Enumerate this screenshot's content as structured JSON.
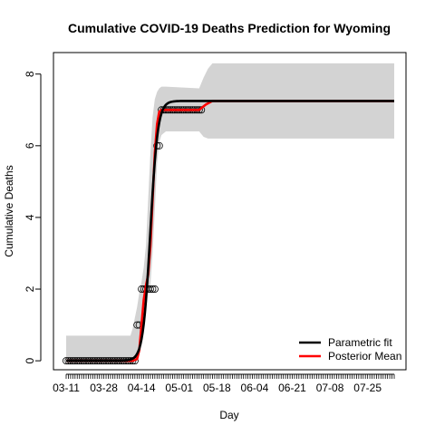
{
  "chart_data": {
    "type": "line",
    "title": "Cumulative COVID-19 Deaths Prediction for Wyoming",
    "xlabel": "Day",
    "ylabel": "Cumulative Deaths",
    "x_start_date": "2020-03-11",
    "x_end_date": "2020-08-06",
    "ylim": [
      0,
      8.6
    ],
    "y_ticks": [
      0,
      2,
      4,
      6,
      8
    ],
    "x_tick_labels": [
      "03-11",
      "03-28",
      "04-14",
      "05-01",
      "05-18",
      "06-04",
      "06-21",
      "07-08",
      "07-25"
    ],
    "x_tick_dates": [
      "2020-03-11",
      "2020-03-28",
      "2020-04-14",
      "2020-05-01",
      "2020-05-18",
      "2020-06-04",
      "2020-06-21",
      "2020-07-08",
      "2020-07-25"
    ],
    "observed": {
      "dates": [
        "2020-03-11",
        "2020-03-12",
        "2020-03-13",
        "2020-03-14",
        "2020-03-15",
        "2020-03-16",
        "2020-03-17",
        "2020-03-18",
        "2020-03-19",
        "2020-03-20",
        "2020-03-21",
        "2020-03-22",
        "2020-03-23",
        "2020-03-24",
        "2020-03-25",
        "2020-03-26",
        "2020-03-27",
        "2020-03-28",
        "2020-03-29",
        "2020-03-30",
        "2020-03-31",
        "2020-04-01",
        "2020-04-02",
        "2020-04-03",
        "2020-04-04",
        "2020-04-05",
        "2020-04-06",
        "2020-04-07",
        "2020-04-08",
        "2020-04-09",
        "2020-04-10",
        "2020-04-11",
        "2020-04-12",
        "2020-04-13",
        "2020-04-14",
        "2020-04-15",
        "2020-04-16",
        "2020-04-17",
        "2020-04-18",
        "2020-04-19",
        "2020-04-20",
        "2020-04-21",
        "2020-04-22",
        "2020-04-23",
        "2020-04-24",
        "2020-04-25",
        "2020-04-26",
        "2020-04-27",
        "2020-04-28",
        "2020-04-29",
        "2020-04-30",
        "2020-05-01",
        "2020-05-02",
        "2020-05-03",
        "2020-05-04",
        "2020-05-05",
        "2020-05-06",
        "2020-05-07",
        "2020-05-08",
        "2020-05-09",
        "2020-05-10",
        "2020-05-11"
      ],
      "values": [
        0,
        0,
        0,
        0,
        0,
        0,
        0,
        0,
        0,
        0,
        0,
        0,
        0,
        0,
        0,
        0,
        0,
        0,
        0,
        0,
        0,
        0,
        0,
        0,
        0,
        0,
        0,
        0,
        0,
        0,
        0,
        0,
        1,
        1,
        2,
        2,
        2,
        2,
        2,
        2,
        2,
        6,
        6,
        7,
        7,
        7,
        7,
        7,
        7,
        7,
        7,
        7,
        7,
        7,
        7,
        7,
        7,
        7,
        7,
        7,
        7,
        7
      ]
    },
    "series": [
      {
        "name": "Parametric fit",
        "color": "#000000",
        "model": "logistic",
        "asymptote": 7.25,
        "midpoint_date": "2020-04-18",
        "growth_rate": 0.6
      },
      {
        "name": "Posterior Mean",
        "color": "#ff0000",
        "dates": [
          "2020-03-11",
          "2020-04-10",
          "2020-04-12",
          "2020-04-13",
          "2020-04-14",
          "2020-04-15",
          "2020-04-16",
          "2020-04-17",
          "2020-04-18",
          "2020-04-19",
          "2020-04-20",
          "2020-04-21",
          "2020-04-22",
          "2020-04-23",
          "2020-04-24",
          "2020-05-10",
          "2020-05-13",
          "2020-05-16",
          "2020-08-06"
        ],
        "values": [
          0,
          0,
          0.05,
          0.3,
          1,
          1.7,
          2.1,
          2.4,
          3.2,
          4.5,
          5.8,
          6.6,
          6.95,
          7.0,
          7.0,
          7.0,
          7.15,
          7.25,
          7.25
        ]
      }
    ],
    "band": {
      "color": "#d3d3d3",
      "dates": [
        "2020-03-11",
        "2020-04-08",
        "2020-04-09",
        "2020-04-10",
        "2020-04-11",
        "2020-04-12",
        "2020-04-13",
        "2020-04-14",
        "2020-04-15",
        "2020-04-16",
        "2020-04-17",
        "2020-04-18",
        "2020-04-19",
        "2020-04-20",
        "2020-04-21",
        "2020-04-22",
        "2020-04-23",
        "2020-04-24",
        "2020-04-25",
        "2020-05-10",
        "2020-05-12",
        "2020-05-14",
        "2020-05-16",
        "2020-05-18",
        "2020-08-06"
      ],
      "lower": [
        0,
        0,
        0,
        0,
        0,
        0,
        0.3,
        0.8,
        1.5,
        1.8,
        1.9,
        2.1,
        3.0,
        4.2,
        5.5,
        6.1,
        6.3,
        6.35,
        6.4,
        6.4,
        6.25,
        6.2,
        6.2,
        6.2,
        6.2
      ],
      "upper": [
        0.7,
        0.7,
        0.7,
        0.9,
        1.2,
        1.5,
        1.9,
        2.2,
        2.6,
        3.2,
        4.5,
        5.8,
        6.8,
        7.3,
        7.5,
        7.6,
        7.65,
        7.65,
        7.65,
        7.6,
        7.9,
        8.15,
        8.3,
        8.3,
        8.3
      ]
    },
    "legend_position": "bottom-right",
    "grid": false
  }
}
